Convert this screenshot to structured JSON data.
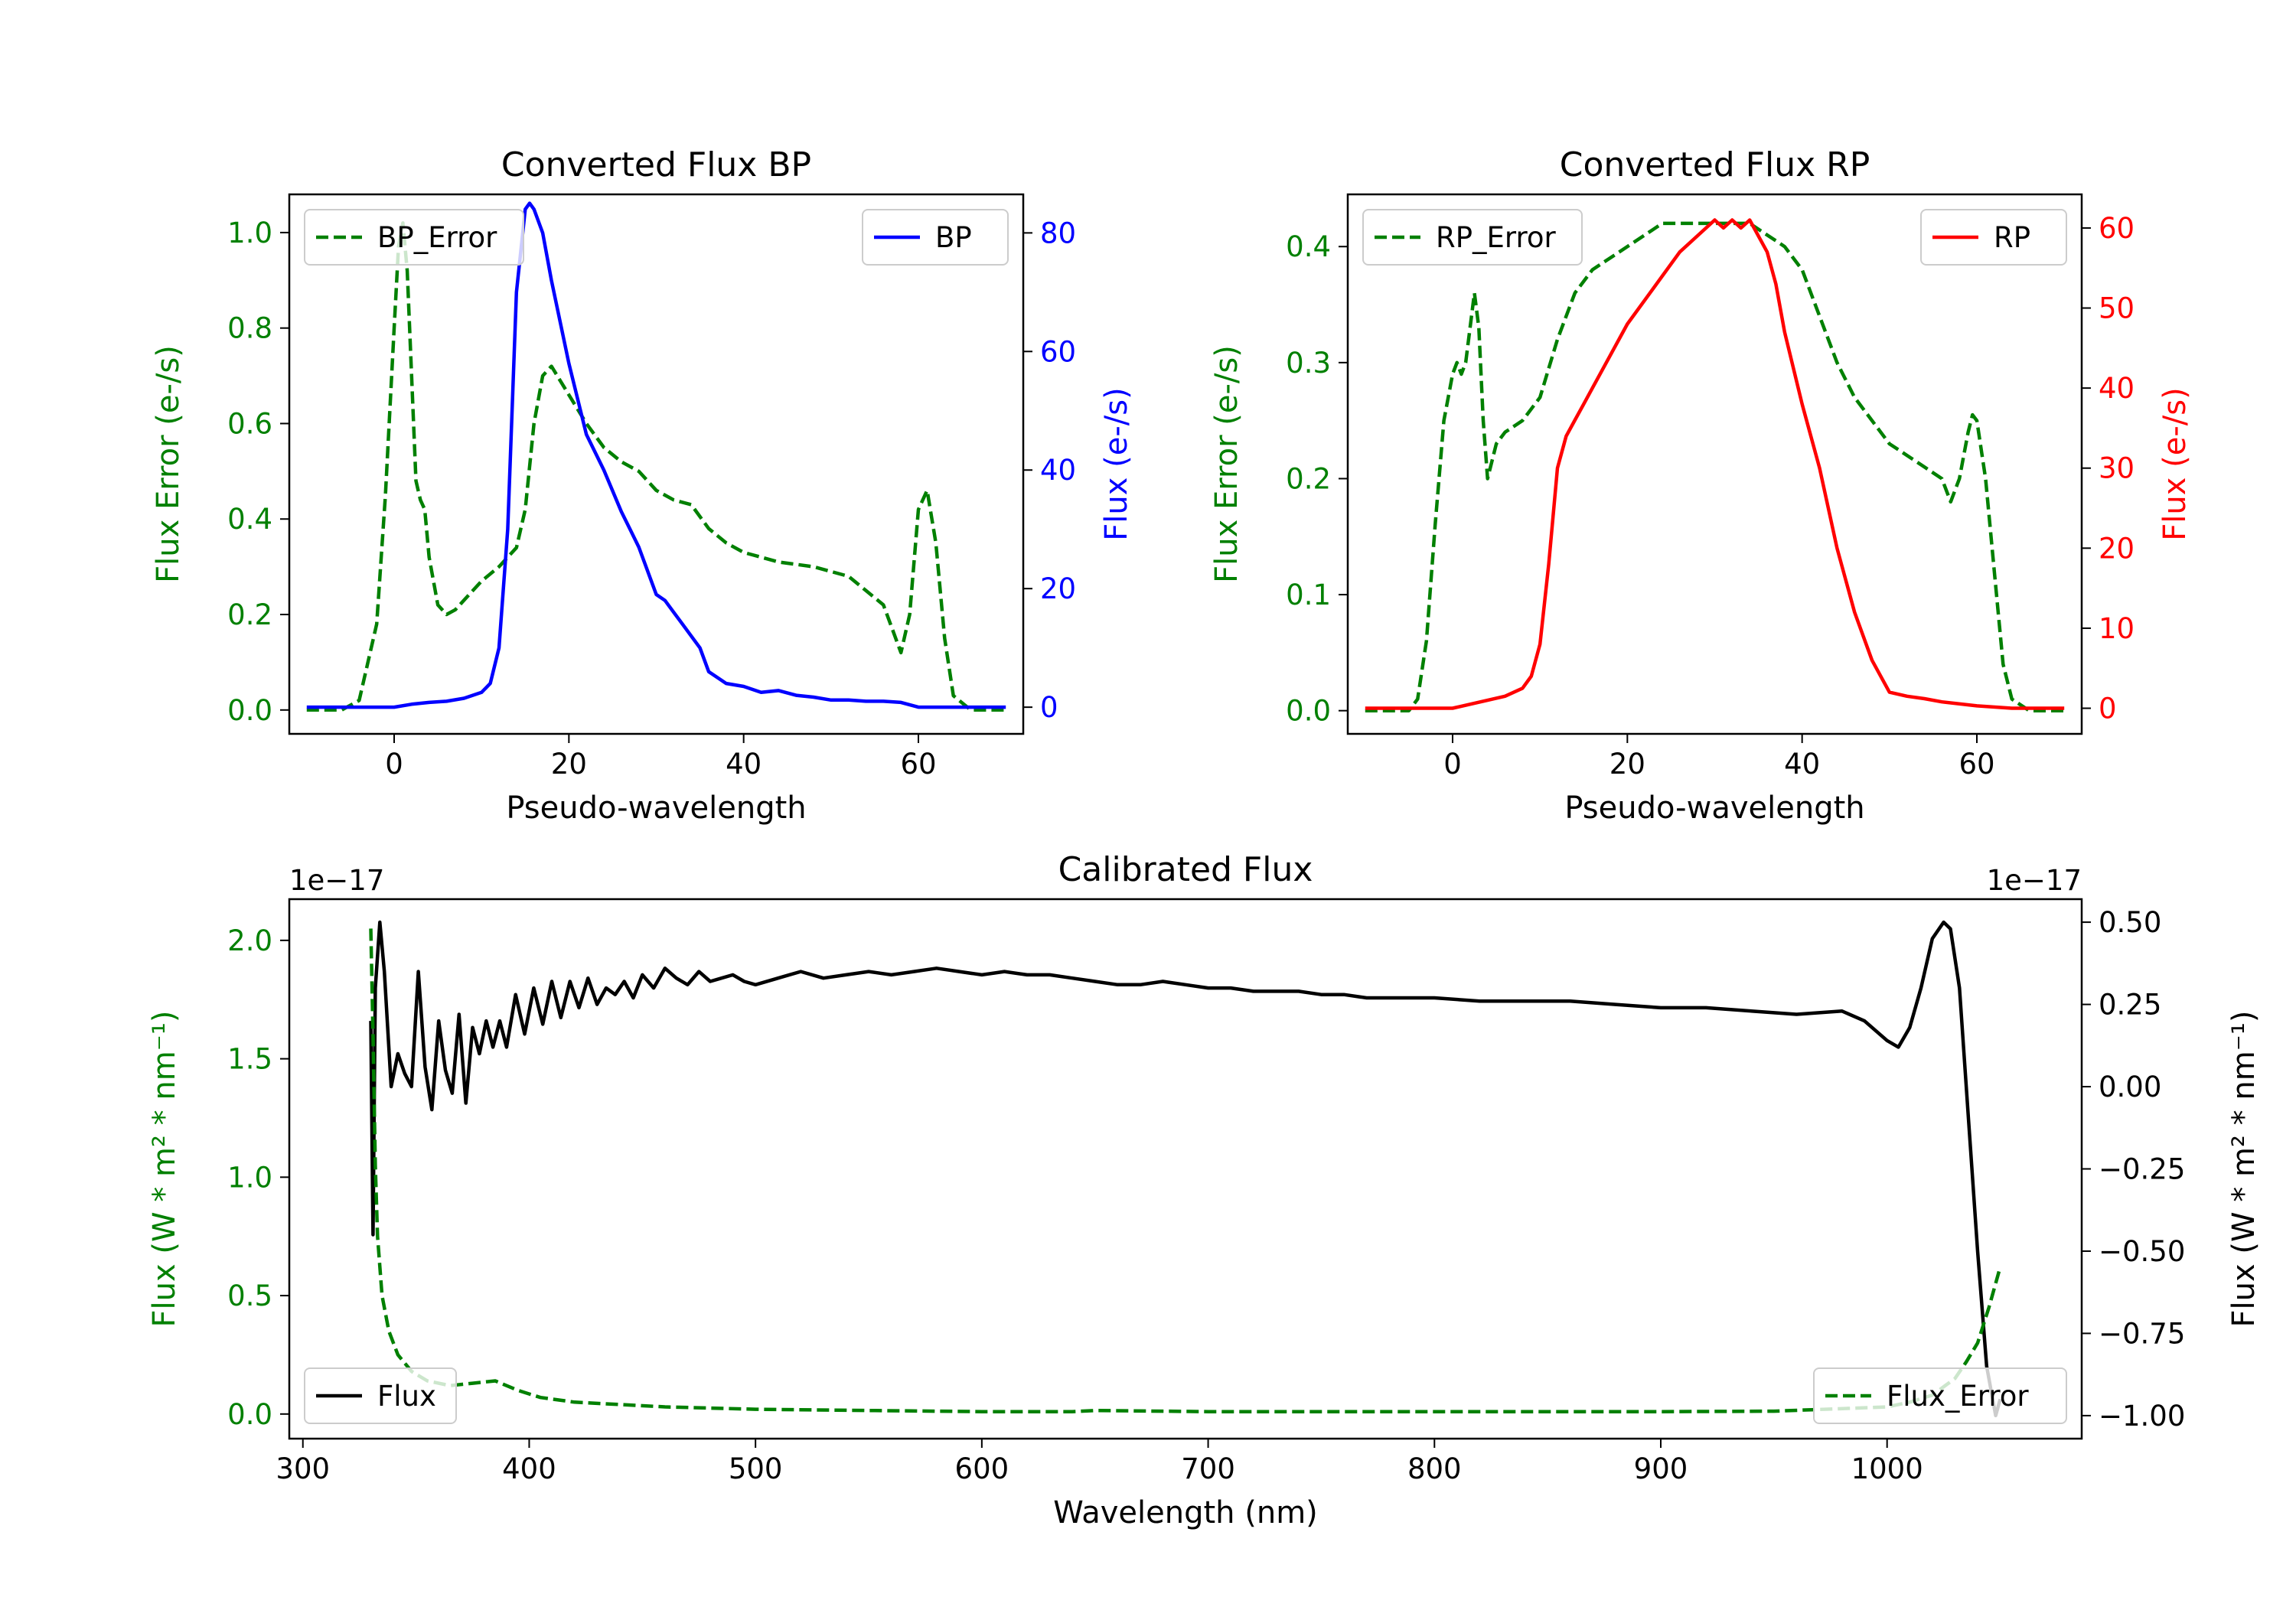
{
  "chart_data": [
    {
      "type": "line",
      "title": "Converted Flux BP",
      "xlabel": "Pseudo-wavelength",
      "ylabel_left": "Flux Error (e-/s)",
      "ylabel_right": "Flux (e-/s)",
      "xlim": [
        -12,
        72
      ],
      "ylim_left": [
        -0.05,
        1.08
      ],
      "ylim_right": [
        -4.5,
        86.5
      ],
      "xticks": [
        0,
        20,
        40,
        60
      ],
      "yticks_left": [
        0.0,
        0.2,
        0.4,
        0.6,
        0.8,
        1.0
      ],
      "yticks_right": [
        0,
        20,
        40,
        60,
        80
      ],
      "legend_left": {
        "label": "BP_Error",
        "position": "top-left"
      },
      "legend_right": {
        "label": "BP",
        "position": "top-right"
      },
      "series": [
        {
          "name": "BP_Error",
          "axis": "left",
          "color": "#008000",
          "style": "dashed",
          "x": [
            -10,
            -6,
            -4,
            -2,
            -1,
            0,
            0.5,
            1,
            1.5,
            2,
            2.5,
            3,
            3.5,
            4,
            5,
            6,
            7,
            8,
            10,
            12,
            14,
            15,
            16,
            17,
            18,
            20,
            22,
            24,
            26,
            28,
            30,
            32,
            34,
            36,
            38,
            40,
            44,
            48,
            52,
            54,
            56,
            57,
            58,
            59,
            60,
            61,
            62,
            63,
            64,
            66,
            70
          ],
          "y": [
            0.0,
            0.0,
            0.02,
            0.18,
            0.45,
            0.8,
            0.97,
            1.02,
            0.92,
            0.7,
            0.48,
            0.44,
            0.42,
            0.32,
            0.22,
            0.2,
            0.21,
            0.23,
            0.27,
            0.3,
            0.34,
            0.42,
            0.6,
            0.7,
            0.72,
            0.66,
            0.6,
            0.55,
            0.52,
            0.5,
            0.46,
            0.44,
            0.43,
            0.38,
            0.35,
            0.33,
            0.31,
            0.3,
            0.28,
            0.25,
            0.22,
            0.17,
            0.12,
            0.2,
            0.42,
            0.46,
            0.35,
            0.15,
            0.03,
            0.0,
            0.0
          ]
        },
        {
          "name": "BP",
          "axis": "right",
          "color": "#0000ff",
          "style": "solid",
          "x": [
            -10,
            -6,
            -2,
            0,
            2,
            4,
            6,
            8,
            10,
            11,
            12,
            13,
            14,
            15,
            15.5,
            16,
            17,
            18,
            20,
            22,
            24,
            26,
            27,
            28,
            30,
            31,
            32,
            33,
            34,
            35,
            36,
            38,
            40,
            42,
            44,
            46,
            48,
            50,
            52,
            54,
            56,
            58,
            60,
            62,
            66,
            70
          ],
          "y": [
            0,
            0,
            0,
            0,
            0.5,
            0.8,
            1,
            1.5,
            2.5,
            4,
            10,
            30,
            70,
            84,
            85,
            84,
            80,
            72,
            58,
            46,
            40,
            33,
            30,
            27,
            19,
            18,
            16,
            14,
            12,
            10,
            6,
            4,
            3.5,
            2.5,
            2.8,
            2,
            1.7,
            1.2,
            1.2,
            1,
            1,
            0.8,
            0,
            0,
            0,
            0
          ]
        }
      ]
    },
    {
      "type": "line",
      "title": "Converted Flux RP",
      "xlabel": "Pseudo-wavelength",
      "ylabel_left": "Flux Error (e-/s)",
      "ylabel_right": "Flux (e-/s)",
      "xlim": [
        -12,
        72
      ],
      "ylim_left": [
        -0.02,
        0.445
      ],
      "ylim_right": [
        -3.2,
        64.2
      ],
      "xticks": [
        0,
        20,
        40,
        60
      ],
      "yticks_left": [
        0.0,
        0.1,
        0.2,
        0.3,
        0.4
      ],
      "yticks_right": [
        0,
        10,
        20,
        30,
        40,
        50,
        60
      ],
      "legend_left": {
        "label": "RP_Error",
        "position": "top-left"
      },
      "legend_right": {
        "label": "RP",
        "position": "top-right"
      },
      "series": [
        {
          "name": "RP_Error",
          "axis": "left",
          "color": "#008000",
          "style": "dashed",
          "x": [
            -10,
            -5,
            -4,
            -3,
            -2,
            -1,
            0,
            0.5,
            1,
            1.5,
            2,
            2.5,
            3,
            3.5,
            4,
            5,
            6,
            8,
            10,
            12,
            14,
            16,
            18,
            20,
            22,
            24,
            26,
            28,
            30,
            32,
            34,
            36,
            38,
            40,
            42,
            44,
            46,
            48,
            50,
            52,
            54,
            56,
            57,
            58,
            59,
            59.5,
            60,
            61,
            62,
            63,
            64,
            66,
            70
          ],
          "y": [
            0.0,
            0.0,
            0.01,
            0.06,
            0.16,
            0.25,
            0.29,
            0.3,
            0.29,
            0.3,
            0.33,
            0.36,
            0.33,
            0.25,
            0.2,
            0.23,
            0.24,
            0.25,
            0.27,
            0.32,
            0.36,
            0.38,
            0.39,
            0.4,
            0.41,
            0.42,
            0.42,
            0.42,
            0.42,
            0.42,
            0.42,
            0.41,
            0.4,
            0.38,
            0.34,
            0.3,
            0.27,
            0.25,
            0.23,
            0.22,
            0.21,
            0.2,
            0.18,
            0.2,
            0.24,
            0.255,
            0.25,
            0.2,
            0.12,
            0.04,
            0.01,
            0.0,
            0.0
          ]
        },
        {
          "name": "RP",
          "axis": "right",
          "color": "#ff0000",
          "style": "solid",
          "x": [
            -10,
            -4,
            0,
            2,
            4,
            6,
            8,
            9,
            10,
            11,
            12,
            13,
            14,
            15,
            16,
            18,
            20,
            22,
            24,
            26,
            28,
            30,
            31,
            32,
            33,
            34,
            35,
            36,
            37,
            38,
            40,
            42,
            44,
            46,
            48,
            50,
            52,
            54,
            56,
            60,
            64,
            66,
            70
          ],
          "y": [
            0,
            0,
            0,
            0.5,
            1,
            1.5,
            2.5,
            4,
            8,
            18,
            30,
            34,
            36,
            38,
            40,
            44,
            48,
            51,
            54,
            57,
            59,
            61,
            60,
            61,
            60,
            61,
            59,
            57,
            53,
            47,
            38,
            30,
            20,
            12,
            6,
            2,
            1.5,
            1.2,
            0.8,
            0.3,
            0,
            0,
            0
          ]
        }
      ]
    },
    {
      "type": "line",
      "title": "Calibrated Flux",
      "xlabel": "Wavelength (nm)",
      "ylabel_left": "Flux (W * m² * nm⁻¹)",
      "ylabel_right": "Flux (W * m² * nm⁻¹)",
      "offset_left": "1e−17",
      "offset_right": "1e−17",
      "xlim": [
        294,
        1086
      ],
      "ylim_left": [
        -0.104,
        2.174
      ],
      "ylim_right": [
        -1.07,
        0.57
      ],
      "xticks": [
        300,
        400,
        500,
        600,
        700,
        800,
        900,
        1000
      ],
      "yticks_left": [
        0.0,
        0.5,
        1.0,
        1.5,
        2.0
      ],
      "yticks_right": [
        -1.0,
        -0.75,
        -0.5,
        -0.25,
        0.0,
        0.25,
        0.5
      ],
      "legend_left": {
        "label": "Flux",
        "position": "bottom-left"
      },
      "legend_right": {
        "label": "Flux_Error",
        "position": "bottom-right"
      },
      "series": [
        {
          "name": "Flux_Error",
          "axis": "left",
          "color": "#008000",
          "style": "dashed",
          "x": [
            330,
            331,
            332,
            333,
            335,
            338,
            342,
            348,
            355,
            365,
            375,
            385,
            395,
            405,
            420,
            440,
            460,
            500,
            550,
            600,
            640,
            650,
            700,
            800,
            900,
            950,
            1000,
            1010,
            1020,
            1030,
            1035,
            1040,
            1045,
            1050
          ],
          "y": [
            2.05,
            1.6,
            1.05,
            0.75,
            0.5,
            0.35,
            0.25,
            0.18,
            0.14,
            0.12,
            0.13,
            0.14,
            0.1,
            0.07,
            0.05,
            0.04,
            0.03,
            0.02,
            0.015,
            0.01,
            0.01,
            0.015,
            0.01,
            0.01,
            0.01,
            0.012,
            0.03,
            0.05,
            0.08,
            0.15,
            0.22,
            0.3,
            0.45,
            0.62
          ]
        },
        {
          "name": "Flux",
          "axis": "right",
          "color": "#000000",
          "style": "solid",
          "x": [
            330,
            331,
            332,
            334,
            336,
            339,
            342,
            345,
            348,
            351,
            354,
            357,
            360,
            363,
            366,
            369,
            372,
            375,
            378,
            381,
            384,
            387,
            390,
            394,
            398,
            402,
            406,
            410,
            414,
            418,
            422,
            426,
            430,
            434,
            438,
            442,
            446,
            450,
            455,
            460,
            465,
            470,
            475,
            480,
            485,
            490,
            495,
            500,
            510,
            520,
            530,
            540,
            550,
            560,
            570,
            580,
            590,
            600,
            610,
            620,
            630,
            640,
            650,
            660,
            670,
            680,
            690,
            700,
            710,
            720,
            730,
            740,
            750,
            760,
            770,
            780,
            790,
            800,
            820,
            840,
            860,
            880,
            900,
            920,
            940,
            960,
            980,
            990,
            1000,
            1005,
            1010,
            1015,
            1020,
            1025,
            1028,
            1032,
            1036,
            1040,
            1044,
            1048,
            1050
          ],
          "y": [
            0.2,
            -0.45,
            0.3,
            0.5,
            0.35,
            0.0,
            0.1,
            0.04,
            0.0,
            0.35,
            0.06,
            -0.07,
            0.2,
            0.05,
            -0.02,
            0.22,
            -0.05,
            0.18,
            0.1,
            0.2,
            0.12,
            0.2,
            0.12,
            0.28,
            0.16,
            0.3,
            0.19,
            0.32,
            0.21,
            0.32,
            0.24,
            0.33,
            0.25,
            0.3,
            0.28,
            0.32,
            0.27,
            0.34,
            0.3,
            0.36,
            0.33,
            0.31,
            0.35,
            0.32,
            0.33,
            0.34,
            0.32,
            0.31,
            0.33,
            0.35,
            0.33,
            0.34,
            0.35,
            0.34,
            0.35,
            0.36,
            0.35,
            0.34,
            0.35,
            0.34,
            0.34,
            0.33,
            0.32,
            0.31,
            0.31,
            0.32,
            0.31,
            0.3,
            0.3,
            0.29,
            0.29,
            0.29,
            0.28,
            0.28,
            0.27,
            0.27,
            0.27,
            0.27,
            0.26,
            0.26,
            0.26,
            0.25,
            0.24,
            0.24,
            0.23,
            0.22,
            0.23,
            0.2,
            0.14,
            0.12,
            0.18,
            0.3,
            0.45,
            0.5,
            0.48,
            0.3,
            -0.1,
            -0.5,
            -0.85,
            -1.0,
            -0.95
          ]
        }
      ]
    }
  ]
}
